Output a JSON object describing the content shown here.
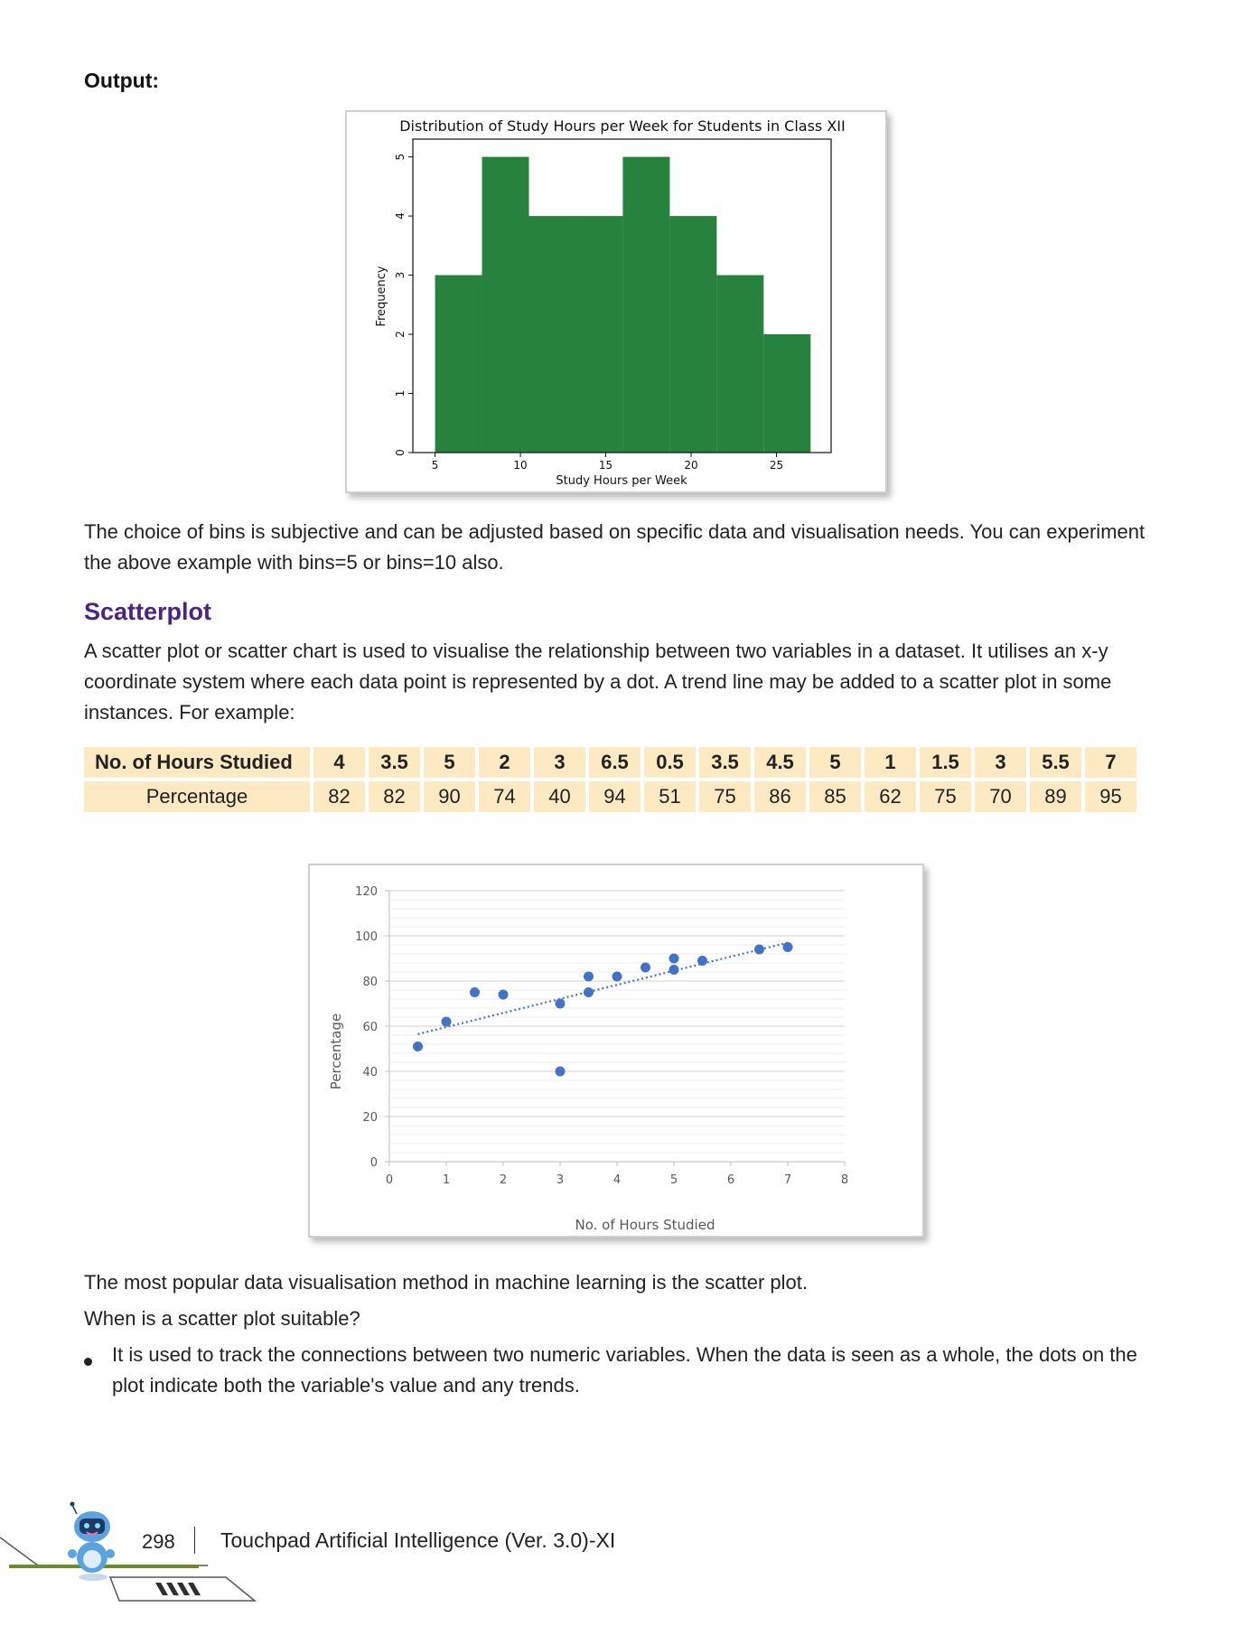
{
  "output_label": "Output:",
  "histogram": {
    "chart_data": {
      "type": "bar",
      "title": "Distribution of Study Hours per Week for Students in Class XII",
      "xlabel": "Study Hours per Week",
      "ylabel": "Frequency",
      "bins": [
        [
          5,
          7.75
        ],
        [
          7.75,
          10.5
        ],
        [
          10.5,
          13.25
        ],
        [
          13.25,
          16
        ],
        [
          16,
          18.75
        ],
        [
          18.75,
          21.5
        ],
        [
          21.5,
          24.25
        ],
        [
          24.25,
          27
        ]
      ],
      "values": [
        3,
        5,
        4,
        4,
        5,
        4,
        3,
        2
      ],
      "xlim": [
        3.7,
        28.2
      ],
      "ylim": [
        0,
        5.3
      ],
      "xticks": [
        5,
        10,
        15,
        20,
        25
      ],
      "yticks": [
        0,
        1,
        2,
        3,
        4,
        5
      ],
      "bar_color": "#26823c"
    }
  },
  "para1": {
    "line1": "The choice of bins is subjective and can be adjusted based on specific data and visualisation needs. You can experiment",
    "line2": "the above example with bins=5 or bins=10 also."
  },
  "scatter_heading": "Scatterplot",
  "scatter_intro": {
    "line1": "A scatter plot or scatter chart is used to visualise the relationship between two variables in a dataset. It utilises an x-y",
    "line2": "coordinate system where each data point is represented by a dot. A trend line may be added to a scatter plot in some",
    "line3": "instances. For example:"
  },
  "table": {
    "hours_label": "No. of Hours Studied",
    "percent_label": "Percentage",
    "hours": [
      "4",
      "3.5",
      "5",
      "2",
      "3",
      "6.5",
      "0.5",
      "3.5",
      "4.5",
      "5",
      "1",
      "1.5",
      "3",
      "5.5",
      "7"
    ],
    "percent": [
      "82",
      "82",
      "90",
      "74",
      "40",
      "94",
      "51",
      "75",
      "86",
      "85",
      "62",
      "75",
      "70",
      "89",
      "95"
    ]
  },
  "scatter": {
    "chart_data": {
      "type": "scatter",
      "xlabel": "No. of Hours Studied",
      "ylabel": "Percentage",
      "xlim": [
        0,
        8
      ],
      "ylim": [
        0,
        120
      ],
      "xticks": [
        0,
        1,
        2,
        3,
        4,
        5,
        6,
        7,
        8
      ],
      "yticks": [
        0,
        20,
        40,
        60,
        80,
        100,
        120
      ],
      "x": [
        4,
        3.5,
        5,
        2,
        3,
        6.5,
        0.5,
        3.5,
        4.5,
        5,
        1,
        1.5,
        3,
        5.5,
        7
      ],
      "y": [
        82,
        82,
        90,
        74,
        40,
        94,
        51,
        75,
        86,
        85,
        62,
        75,
        70,
        89,
        95
      ],
      "trendline": {
        "style": "dotted",
        "x": [
          0.5,
          7
        ],
        "y": [
          56.5,
          97
        ]
      },
      "point_color": "#4472c4",
      "grid": true
    }
  },
  "para2": "The most popular data visualisation method in machine learning is the scatter plot.",
  "para3": "When is a scatter plot suitable?",
  "bullet1": {
    "line1": "It is used to track the connections between two numeric variables. When the data is seen as a whole, the dots on the",
    "line2": "plot indicate both the variable's value and any trends."
  },
  "footer": {
    "page_number": "298",
    "book_title": "Touchpad Artificial Intelligence (Ver. 3.0)-XI"
  }
}
